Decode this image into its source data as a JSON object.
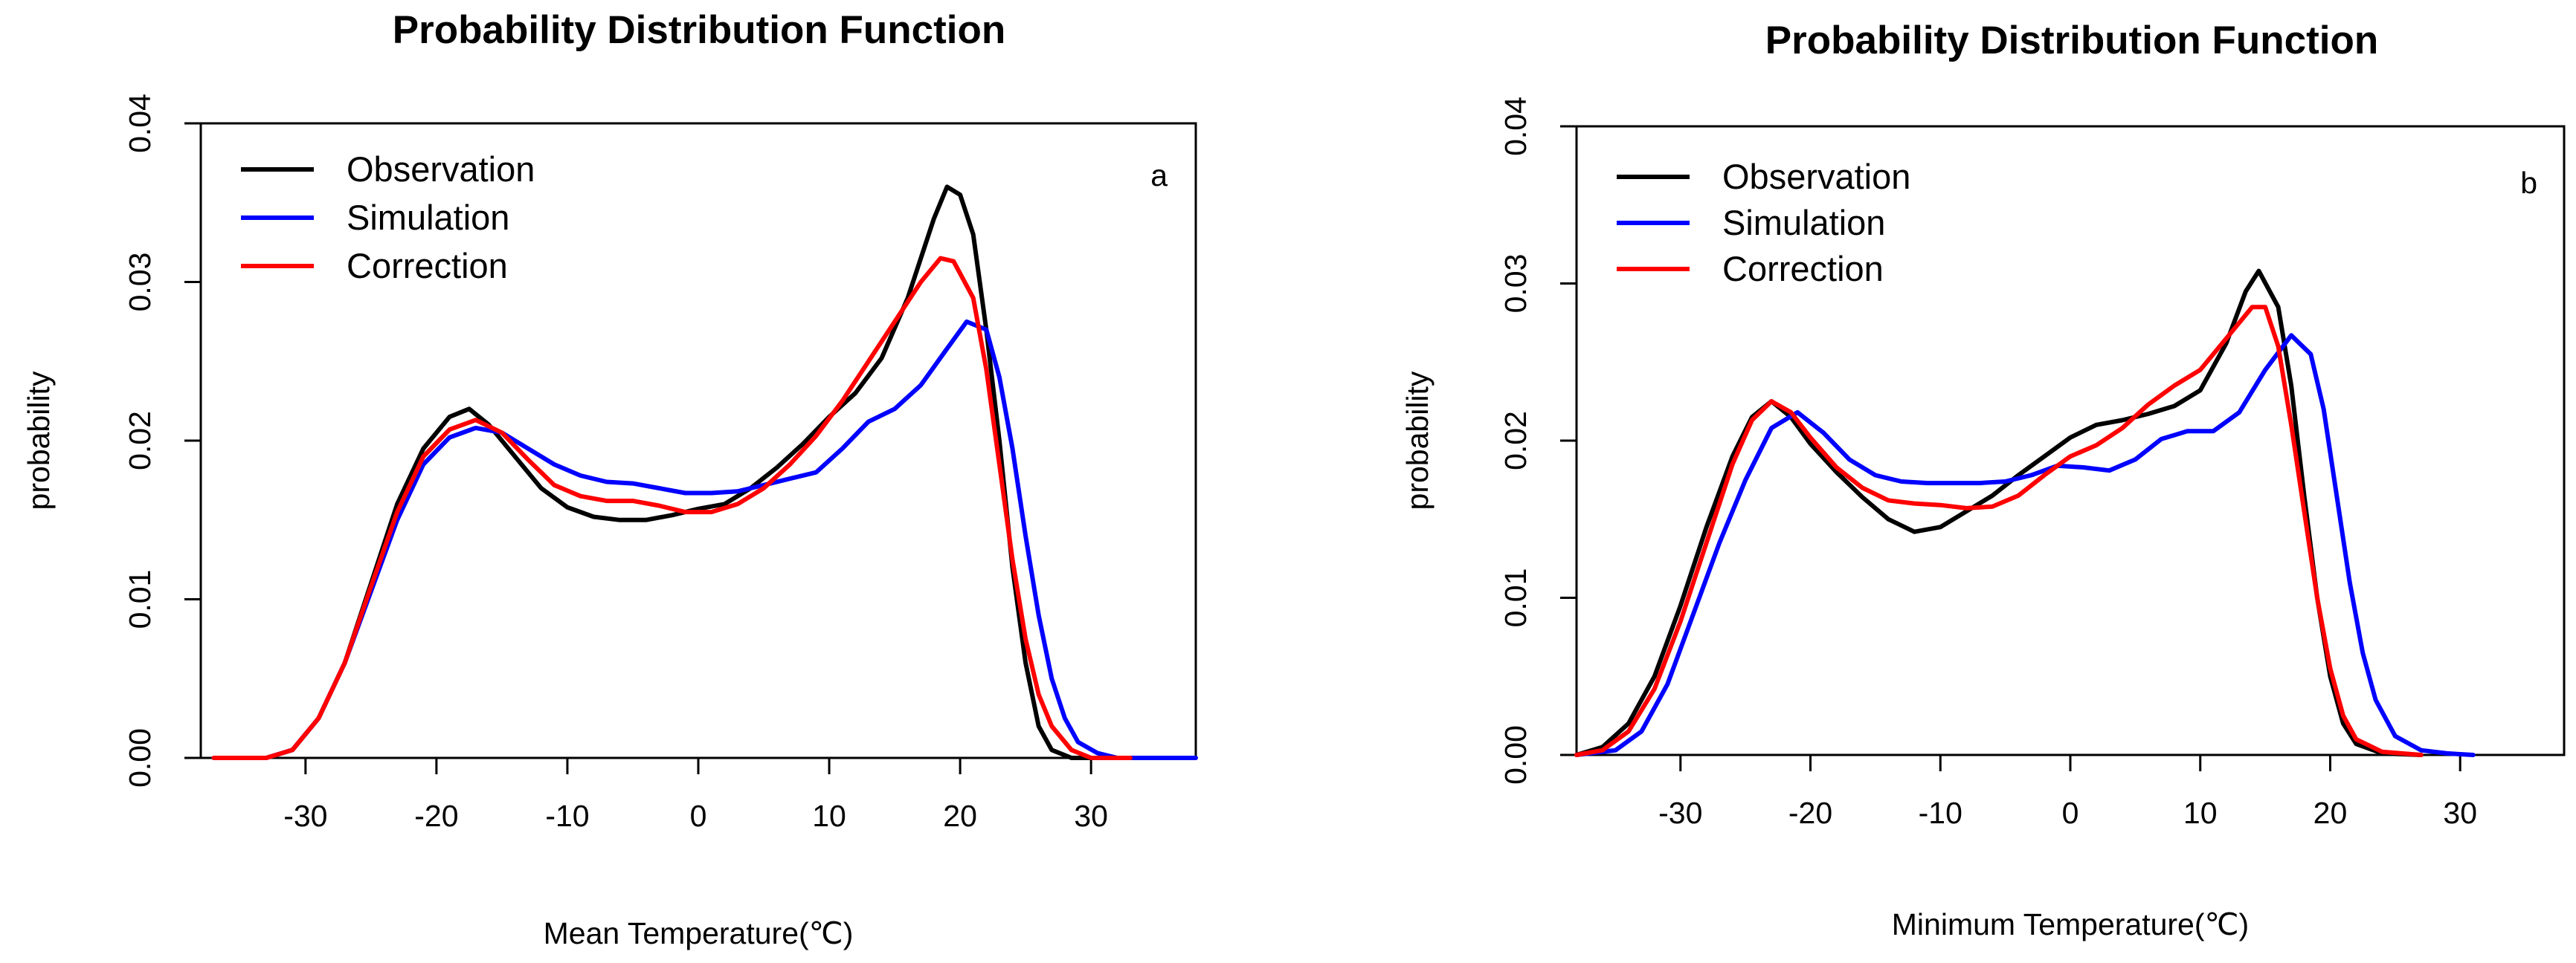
{
  "chart_data": [
    {
      "type": "line",
      "title": "Probability Distribution Function",
      "panel_label": "a",
      "xlabel": "Mean Temperature(℃)",
      "ylabel": "probability",
      "xlim": [
        -38,
        38
      ],
      "ylim": [
        0,
        0.04
      ],
      "x_ticks": [
        -30,
        -20,
        -10,
        0,
        10,
        20,
        30
      ],
      "x_tick_labels": [
        "-30",
        "-20",
        "-10",
        "0",
        "10",
        "20",
        "30"
      ],
      "y_ticks": [
        0,
        0.01,
        0.02,
        0.03,
        0.04
      ],
      "y_tick_labels": [
        "0.00",
        "0.01",
        "0.02",
        "0.03",
        "0.04"
      ],
      "legend_position": "top-left",
      "series": [
        {
          "name": "Observation",
          "color": "#000000",
          "points": [
            [
              -37,
              0
            ],
            [
              -33,
              0
            ],
            [
              -31,
              0.0005
            ],
            [
              -29,
              0.0025
            ],
            [
              -27,
              0.006
            ],
            [
              -25,
              0.011
            ],
            [
              -23,
              0.016
            ],
            [
              -21,
              0.0195
            ],
            [
              -19,
              0.0215
            ],
            [
              -17.5,
              0.022
            ],
            [
              -16,
              0.021
            ],
            [
              -14,
              0.019
            ],
            [
              -12,
              0.017
            ],
            [
              -10,
              0.0158
            ],
            [
              -8,
              0.0152
            ],
            [
              -6,
              0.015
            ],
            [
              -4,
              0.015
            ],
            [
              -2,
              0.0153
            ],
            [
              0,
              0.0157
            ],
            [
              2,
              0.016
            ],
            [
              4,
              0.017
            ],
            [
              6,
              0.0183
            ],
            [
              8,
              0.0198
            ],
            [
              10,
              0.0215
            ],
            [
              12,
              0.023
            ],
            [
              14,
              0.0252
            ],
            [
              16,
              0.029
            ],
            [
              18,
              0.034
            ],
            [
              19,
              0.036
            ],
            [
              20,
              0.0355
            ],
            [
              21,
              0.033
            ],
            [
              22,
              0.027
            ],
            [
              23,
              0.02
            ],
            [
              24,
              0.012
            ],
            [
              25,
              0.006
            ],
            [
              26,
              0.002
            ],
            [
              27,
              0.0005
            ],
            [
              28.5,
              0
            ],
            [
              31,
              0
            ]
          ]
        },
        {
          "name": "Simulation",
          "color": "#0000ff",
          "points": [
            [
              -37,
              0
            ],
            [
              -33,
              0
            ],
            [
              -31,
              0.0005
            ],
            [
              -29,
              0.0025
            ],
            [
              -27,
              0.006
            ],
            [
              -25,
              0.0105
            ],
            [
              -23,
              0.015
            ],
            [
              -21,
              0.0185
            ],
            [
              -19,
              0.0202
            ],
            [
              -17,
              0.0208
            ],
            [
              -15,
              0.0205
            ],
            [
              -13,
              0.0195
            ],
            [
              -11,
              0.0185
            ],
            [
              -9,
              0.0178
            ],
            [
              -7,
              0.0174
            ],
            [
              -5,
              0.0173
            ],
            [
              -3,
              0.017
            ],
            [
              -1,
              0.0167
            ],
            [
              1,
              0.0167
            ],
            [
              3,
              0.0168
            ],
            [
              5,
              0.0172
            ],
            [
              7,
              0.0176
            ],
            [
              9,
              0.018
            ],
            [
              11,
              0.0195
            ],
            [
              13,
              0.0212
            ],
            [
              15,
              0.022
            ],
            [
              17,
              0.0235
            ],
            [
              19,
              0.0258
            ],
            [
              20.5,
              0.0275
            ],
            [
              22,
              0.027
            ],
            [
              23,
              0.024
            ],
            [
              24,
              0.0195
            ],
            [
              25,
              0.014
            ],
            [
              26,
              0.009
            ],
            [
              27,
              0.005
            ],
            [
              28,
              0.0025
            ],
            [
              29,
              0.001
            ],
            [
              30.5,
              0.0003
            ],
            [
              32,
              0
            ],
            [
              38,
              0
            ]
          ]
        },
        {
          "name": "Correction",
          "color": "#ff0000",
          "points": [
            [
              -37,
              0
            ],
            [
              -33,
              0
            ],
            [
              -31,
              0.0005
            ],
            [
              -29,
              0.0025
            ],
            [
              -27,
              0.006
            ],
            [
              -25,
              0.0108
            ],
            [
              -23,
              0.0155
            ],
            [
              -21,
              0.019
            ],
            [
              -19,
              0.0207
            ],
            [
              -17,
              0.0213
            ],
            [
              -15,
              0.0205
            ],
            [
              -13,
              0.0188
            ],
            [
              -11,
              0.0172
            ],
            [
              -9,
              0.0165
            ],
            [
              -7,
              0.0162
            ],
            [
              -5,
              0.0162
            ],
            [
              -3,
              0.0159
            ],
            [
              -1,
              0.0155
            ],
            [
              1,
              0.0155
            ],
            [
              3,
              0.016
            ],
            [
              5,
              0.017
            ],
            [
              7,
              0.0185
            ],
            [
              9,
              0.0203
            ],
            [
              11,
              0.0225
            ],
            [
              13,
              0.025
            ],
            [
              15,
              0.0275
            ],
            [
              17,
              0.03
            ],
            [
              18.5,
              0.0315
            ],
            [
              19.5,
              0.0313
            ],
            [
              21,
              0.029
            ],
            [
              22,
              0.0245
            ],
            [
              23,
              0.0185
            ],
            [
              24,
              0.0125
            ],
            [
              25,
              0.0075
            ],
            [
              26,
              0.004
            ],
            [
              27,
              0.002
            ],
            [
              28.5,
              0.0005
            ],
            [
              30,
              0
            ],
            [
              33,
              0
            ]
          ]
        }
      ]
    },
    {
      "type": "line",
      "title": "Probability Distribution Function",
      "panel_label": "b",
      "xlabel": "Minimum Temperature(℃)",
      "ylabel": "probability",
      "xlim": [
        -38,
        38
      ],
      "ylim": [
        0,
        0.04
      ],
      "x_ticks": [
        -30,
        -20,
        -10,
        0,
        10,
        20,
        30
      ],
      "x_tick_labels": [
        "-30",
        "-20",
        "-10",
        "0",
        "10",
        "20",
        "30"
      ],
      "y_ticks": [
        0,
        0.01,
        0.02,
        0.03,
        0.04
      ],
      "y_tick_labels": [
        "0.00",
        "0.01",
        "0.02",
        "0.03",
        "0.04"
      ],
      "legend_position": "top-left",
      "series": [
        {
          "name": "Observation",
          "color": "#000000",
          "points": [
            [
              -38,
              0
            ],
            [
              -36,
              0.0005
            ],
            [
              -34,
              0.002
            ],
            [
              -32,
              0.005
            ],
            [
              -30,
              0.0095
            ],
            [
              -28,
              0.0145
            ],
            [
              -26,
              0.019
            ],
            [
              -24.5,
              0.0215
            ],
            [
              -23,
              0.0225
            ],
            [
              -21.5,
              0.0215
            ],
            [
              -20,
              0.0198
            ],
            [
              -18,
              0.018
            ],
            [
              -16,
              0.0164
            ],
            [
              -14,
              0.015
            ],
            [
              -12,
              0.0142
            ],
            [
              -10,
              0.0145
            ],
            [
              -8,
              0.0155
            ],
            [
              -6,
              0.0165
            ],
            [
              -4,
              0.0178
            ],
            [
              -2,
              0.019
            ],
            [
              0,
              0.0202
            ],
            [
              2,
              0.021
            ],
            [
              4,
              0.0213
            ],
            [
              6,
              0.0217
            ],
            [
              8,
              0.0222
            ],
            [
              10,
              0.0232
            ],
            [
              12,
              0.0262
            ],
            [
              13.5,
              0.0295
            ],
            [
              14.5,
              0.0308
            ],
            [
              16,
              0.0285
            ],
            [
              17,
              0.0235
            ],
            [
              18,
              0.0165
            ],
            [
              19,
              0.01
            ],
            [
              20,
              0.005
            ],
            [
              21,
              0.002
            ],
            [
              22,
              0.0007
            ],
            [
              24,
              0.0001
            ],
            [
              27,
              0
            ]
          ]
        },
        {
          "name": "Simulation",
          "color": "#0000ff",
          "points": [
            [
              -38,
              0
            ],
            [
              -35,
              0.0003
            ],
            [
              -33,
              0.0015
            ],
            [
              -31,
              0.0045
            ],
            [
              -29,
              0.009
            ],
            [
              -27,
              0.0135
            ],
            [
              -25,
              0.0175
            ],
            [
              -23,
              0.0208
            ],
            [
              -21,
              0.0218
            ],
            [
              -19,
              0.0205
            ],
            [
              -17,
              0.0188
            ],
            [
              -15,
              0.0178
            ],
            [
              -13,
              0.0174
            ],
            [
              -11,
              0.0173
            ],
            [
              -9,
              0.0173
            ],
            [
              -7,
              0.0173
            ],
            [
              -5,
              0.0174
            ],
            [
              -3,
              0.0178
            ],
            [
              -1,
              0.0184
            ],
            [
              1,
              0.0183
            ],
            [
              3,
              0.0181
            ],
            [
              5,
              0.0188
            ],
            [
              7,
              0.0201
            ],
            [
              9,
              0.0206
            ],
            [
              11,
              0.0206
            ],
            [
              13,
              0.0218
            ],
            [
              15,
              0.0245
            ],
            [
              17,
              0.0267
            ],
            [
              18.5,
              0.0255
            ],
            [
              19.5,
              0.022
            ],
            [
              20.5,
              0.0165
            ],
            [
              21.5,
              0.011
            ],
            [
              22.5,
              0.0065
            ],
            [
              23.5,
              0.0035
            ],
            [
              25,
              0.0012
            ],
            [
              27,
              0.0003
            ],
            [
              29,
              0.0001
            ],
            [
              31,
              0
            ]
          ]
        },
        {
          "name": "Correction",
          "color": "#ff0000",
          "points": [
            [
              -38,
              0
            ],
            [
              -36,
              0.0003
            ],
            [
              -34,
              0.0015
            ],
            [
              -32,
              0.0042
            ],
            [
              -30,
              0.0085
            ],
            [
              -28,
              0.0135
            ],
            [
              -26,
              0.0185
            ],
            [
              -24.5,
              0.0213
            ],
            [
              -23,
              0.0225
            ],
            [
              -21.5,
              0.0218
            ],
            [
              -20,
              0.0202
            ],
            [
              -18,
              0.0183
            ],
            [
              -16,
              0.017
            ],
            [
              -14,
              0.0162
            ],
            [
              -12,
              0.016
            ],
            [
              -10,
              0.0159
            ],
            [
              -8,
              0.0157
            ],
            [
              -6,
              0.0158
            ],
            [
              -4,
              0.0165
            ],
            [
              -2,
              0.0178
            ],
            [
              0,
              0.019
            ],
            [
              2,
              0.0197
            ],
            [
              4,
              0.0208
            ],
            [
              6,
              0.0223
            ],
            [
              8,
              0.0235
            ],
            [
              10,
              0.0245
            ],
            [
              12,
              0.0265
            ],
            [
              14,
              0.0285
            ],
            [
              15,
              0.0285
            ],
            [
              16,
              0.026
            ],
            [
              17,
              0.021
            ],
            [
              18,
              0.0155
            ],
            [
              19,
              0.01
            ],
            [
              20,
              0.0055
            ],
            [
              21,
              0.0025
            ],
            [
              22,
              0.001
            ],
            [
              24,
              0.0002
            ],
            [
              27,
              0
            ]
          ]
        }
      ]
    }
  ]
}
